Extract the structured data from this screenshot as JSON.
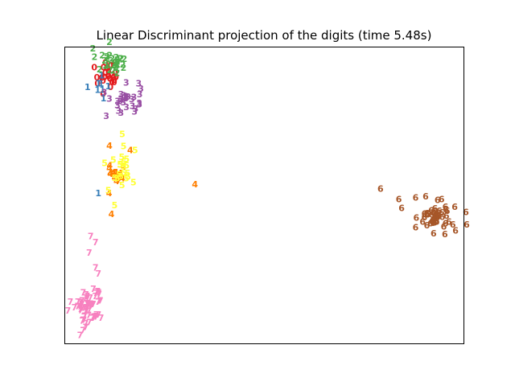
{
  "chart_data": {
    "type": "scatter",
    "title": "Linear Discriminant projection of the digits (time 5.48s)",
    "xlabel": "",
    "ylabel": "",
    "xlim": [
      0,
      100
    ],
    "ylim": [
      0,
      100
    ],
    "grid": false,
    "axis_ticks": false,
    "marker": "digit-glyph",
    "series": [
      {
        "label": "0",
        "color": "#e41a1c",
        "center": [
          11,
          91
        ],
        "spread": [
          1.6,
          2.4
        ],
        "count": 22,
        "extras": [
          [
            7.5,
            93
          ],
          [
            8.3,
            87.5
          ],
          [
            9.7,
            84
          ]
        ]
      },
      {
        "label": "1",
        "color": "#377eb8",
        "center": [
          9,
          87
        ],
        "spread": [
          1.5,
          2.2
        ],
        "count": 6,
        "extras": [
          [
            8.5,
            87.5
          ],
          [
            9.8,
            82.5
          ],
          [
            8.5,
            50.5
          ]
        ]
      },
      {
        "label": "2",
        "color": "#4daf4a",
        "center": [
          11.5,
          95
        ],
        "spread": [
          1.8,
          2.2
        ],
        "count": 26,
        "extras": [
          [
            11.3,
            101.5
          ],
          [
            9.5,
            97
          ],
          [
            14,
            96
          ]
        ]
      },
      {
        "label": "3",
        "color": "#984ea3",
        "center": [
          15.5,
          81.5
        ],
        "spread": [
          1.8,
          2.5
        ],
        "count": 26,
        "extras": [
          [
            10.5,
            76.5
          ],
          [
            18.8,
            80.5
          ],
          [
            18.6,
            87.5
          ],
          [
            10,
            84.5
          ]
        ]
      },
      {
        "label": "4",
        "color": "#ff7f00",
        "center": [
          13,
          57
        ],
        "spread": [
          1.4,
          2.2
        ],
        "count": 14,
        "extras": [
          [
            32.7,
            53.5
          ],
          [
            11.3,
            66.5
          ],
          [
            11.2,
            50.5
          ],
          [
            11.8,
            43.5
          ],
          [
            16.5,
            65
          ]
        ]
      },
      {
        "label": "5",
        "color": "#ffff33",
        "center": [
          14,
          60
        ],
        "spread": [
          1.8,
          3.2
        ],
        "count": 22,
        "extras": [
          [
            12.6,
            46.5
          ],
          [
            11,
            51.5
          ],
          [
            14.5,
            70.5
          ]
        ]
      },
      {
        "label": "6",
        "color": "#a65628",
        "center": [
          93.5,
          42.5
        ],
        "spread": [
          2.2,
          2.2
        ],
        "count": 42,
        "extras": [
          [
            79.2,
            52
          ],
          [
            83.8,
            48.5
          ],
          [
            88,
            49
          ],
          [
            84.5,
            45.5
          ],
          [
            90.5,
            49.5
          ],
          [
            94.5,
            48.5
          ],
          [
            98,
            38
          ],
          [
            88,
            39
          ],
          [
            92.5,
            37
          ],
          [
            100.8,
            40
          ],
          [
            97.8,
            46
          ]
        ]
      },
      {
        "label": "7",
        "color": "#f781bf",
        "center": [
          6,
          12.5
        ],
        "spread": [
          1.8,
          3.8
        ],
        "count": 58,
        "extras": [
          [
            6.6,
            36
          ],
          [
            7.8,
            34
          ],
          [
            6.2,
            30.5
          ],
          [
            7.8,
            25.5
          ],
          [
            8.5,
            23.5
          ],
          [
            1.5,
            14
          ],
          [
            2.5,
            12
          ]
        ]
      }
    ]
  }
}
